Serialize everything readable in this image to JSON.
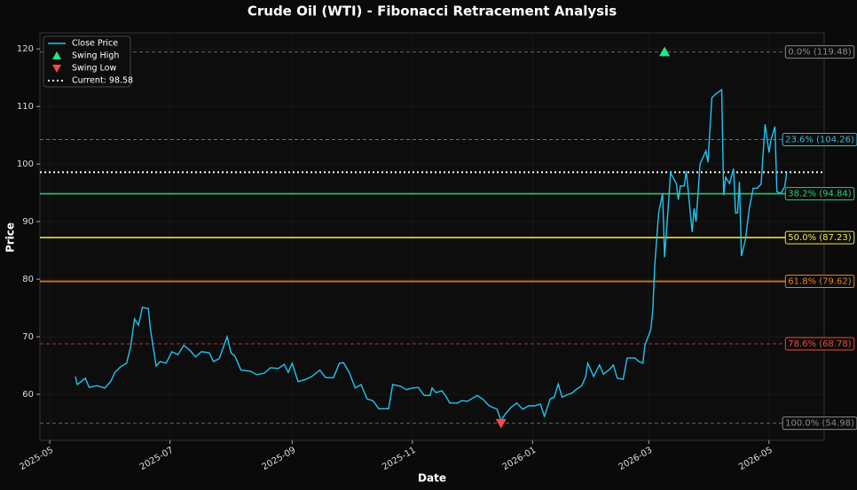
{
  "chart_data": {
    "type": "line",
    "title": "Crude Oil (WTI) - Fibonacci Retracement Analysis",
    "x_label": "Date",
    "y_label": "Price",
    "legend": "upper left",
    "grid": true,
    "xlim": [
      "2025-04-26",
      "2026-05-29"
    ],
    "ylim": [
      52,
      122.8
    ],
    "xticks": [
      "2025-05",
      "2025-07",
      "2025-09",
      "2025-11",
      "2026-01",
      "2026-03",
      "2026-05"
    ],
    "yticks": [
      60,
      70,
      80,
      90,
      100,
      110,
      120
    ],
    "x": [
      "2025-05-14",
      "2025-05-15",
      "2025-05-19",
      "2025-05-21",
      "2025-05-25",
      "2025-05-29",
      "2025-06-01",
      "2025-06-03",
      "2025-06-06",
      "2025-06-09",
      "2025-06-11",
      "2025-06-13",
      "2025-06-15",
      "2025-06-17",
      "2025-06-20",
      "2025-06-21",
      "2025-06-24",
      "2025-06-26",
      "2025-06-29",
      "2025-07-02",
      "2025-07-05",
      "2025-07-08",
      "2025-07-11",
      "2025-07-14",
      "2025-07-17",
      "2025-07-21",
      "2025-07-23",
      "2025-07-26",
      "2025-07-30",
      "2025-08-01",
      "2025-08-03",
      "2025-08-06",
      "2025-08-11",
      "2025-08-14",
      "2025-08-18",
      "2025-08-21",
      "2025-08-25",
      "2025-08-28",
      "2025-08-30",
      "2025-09-01",
      "2025-09-04",
      "2025-09-08",
      "2025-09-11",
      "2025-09-15",
      "2025-09-18",
      "2025-09-22",
      "2025-09-25",
      "2025-09-27",
      "2025-09-30",
      "2025-10-03",
      "2025-10-06",
      "2025-10-09",
      "2025-10-12",
      "2025-10-15",
      "2025-10-20",
      "2025-10-22",
      "2025-10-26",
      "2025-10-29",
      "2025-11-01",
      "2025-11-04",
      "2025-11-07",
      "2025-11-10",
      "2025-11-11",
      "2025-11-13",
      "2025-11-16",
      "2025-11-18",
      "2025-11-20",
      "2025-11-24",
      "2025-11-26",
      "2025-11-29",
      "2025-12-01",
      "2025-12-04",
      "2025-12-07",
      "2025-12-10",
      "2025-12-14",
      "2025-12-16",
      "2025-12-18",
      "2025-12-21",
      "2025-12-24",
      "2025-12-27",
      "2025-12-30",
      "2026-01-02",
      "2026-01-05",
      "2026-01-07",
      "2026-01-10",
      "2026-01-12",
      "2026-01-14",
      "2026-01-16",
      "2026-01-19",
      "2026-01-21",
      "2026-01-23",
      "2026-01-26",
      "2026-01-28",
      "2026-01-29",
      "2026-02-01",
      "2026-02-04",
      "2026-02-06",
      "2026-02-09",
      "2026-02-11",
      "2026-02-13",
      "2026-02-16",
      "2026-02-18",
      "2026-02-22",
      "2026-02-24",
      "2026-02-26",
      "2026-02-27",
      "2026-03-02",
      "2026-03-03",
      "2026-03-04",
      "2026-03-06",
      "2026-03-08",
      "2026-03-09",
      "2026-03-11",
      "2026-03-12",
      "2026-03-15",
      "2026-03-16",
      "2026-03-17",
      "2026-03-19",
      "2026-03-20",
      "2026-03-21",
      "2026-03-23",
      "2026-03-24",
      "2026-03-25",
      "2026-03-27",
      "2026-03-30",
      "2026-03-31",
      "2026-04-02",
      "2026-04-04",
      "2026-04-07",
      "2026-04-08",
      "2026-04-09",
      "2026-04-11",
      "2026-04-13",
      "2026-04-14",
      "2026-04-15",
      "2026-04-16",
      "2026-04-17",
      "2026-04-19",
      "2026-04-21",
      "2026-04-23",
      "2026-04-25",
      "2026-04-27",
      "2026-04-29",
      "2026-05-01",
      "2026-05-02",
      "2026-05-04",
      "2026-05-05",
      "2026-05-07",
      "2026-05-09",
      "2026-05-10"
    ],
    "series": [
      {
        "name": "Close Price",
        "color": "#22c4f0",
        "values": [
          63.1,
          61.7,
          62.8,
          61.2,
          61.5,
          61.1,
          62.3,
          63.8,
          64.8,
          65.4,
          68.2,
          73.1,
          72,
          75.1,
          74.9,
          71.5,
          64.9,
          65.7,
          65.4,
          67.4,
          66.9,
          68.5,
          67.7,
          66.5,
          67.4,
          67.2,
          65.7,
          66.2,
          70,
          67.2,
          66.6,
          64.2,
          64,
          63.4,
          63.7,
          64.6,
          64.5,
          65.2,
          63.8,
          65.4,
          62.2,
          62.6,
          63.1,
          64.2,
          62.9,
          62.9,
          65.4,
          65.5,
          63.8,
          61.1,
          61.7,
          59.2,
          58.9,
          57.5,
          57.5,
          61.7,
          61.4,
          60.8,
          61.1,
          61.2,
          59.8,
          59.8,
          61.1,
          60.3,
          60.6,
          59.7,
          58.5,
          58.5,
          58.9,
          58.8,
          59.2,
          59.8,
          59.1,
          58,
          57.4,
          55.4,
          56.5,
          57.7,
          58.5,
          57.4,
          58,
          58,
          58.3,
          56.2,
          59.2,
          59.5,
          61.8,
          59.5,
          60,
          60.2,
          60.8,
          61.5,
          63.1,
          65.4,
          63.1,
          65.1,
          63.5,
          64.3,
          65.1,
          62.8,
          62.6,
          66.3,
          66.3,
          65.7,
          65.4,
          68.5,
          71.2,
          74.6,
          82.3,
          91.5,
          94.9,
          83.8,
          93.1,
          98.5,
          96.6,
          93.8,
          96.2,
          96.2,
          98.8,
          95.4,
          88.2,
          92.3,
          90,
          100,
          102.3,
          100.3,
          111.5,
          112.2,
          112.9,
          94.6,
          97.7,
          96.6,
          99.2,
          91.5,
          91.5,
          96.9,
          84,
          86.9,
          92.3,
          95.8,
          95.8,
          96.5,
          106.9,
          102,
          104.2,
          106.5,
          95.2,
          94.9,
          96.1,
          98.5
        ]
      },
      {
        "name": "Swing High",
        "type": "scatter",
        "marker": "triangle-up",
        "color": "#1de98b",
        "x": [
          "2026-03-09"
        ],
        "values": [
          119.48
        ]
      },
      {
        "name": "Swing Low",
        "type": "scatter",
        "marker": "triangle-down",
        "color": "#f04a4a",
        "x": [
          "2025-12-16"
        ],
        "values": [
          54.98
        ]
      }
    ],
    "current": {
      "name": "Current: 98.58",
      "value": 98.58,
      "color": "#ffffff",
      "style": "dotted"
    },
    "fib_levels": [
      {
        "label": "0.0% (119.48)",
        "value": 119.48,
        "color": "#8a8a8a",
        "style": "dashed"
      },
      {
        "label": "23.6% (104.26)",
        "value": 104.26,
        "color": "#3ab7d9",
        "style": "dashed"
      },
      {
        "label": "38.2% (94.84)",
        "value": 94.84,
        "color": "#2ecc71",
        "style": "solid"
      },
      {
        "label": "50.0% (87.23)",
        "value": 87.23,
        "color": "#f1e740",
        "style": "solid"
      },
      {
        "label": "61.8% (79.62)",
        "value": 79.62,
        "color": "#e67e22",
        "style": "solid"
      },
      {
        "label": "78.6% (68.78)",
        "value": 68.78,
        "color": "#e74c3c",
        "style": "dashed"
      },
      {
        "label": "100.0% (54.98)",
        "value": 54.98,
        "color": "#8a8a8a",
        "style": "dashed"
      }
    ]
  }
}
